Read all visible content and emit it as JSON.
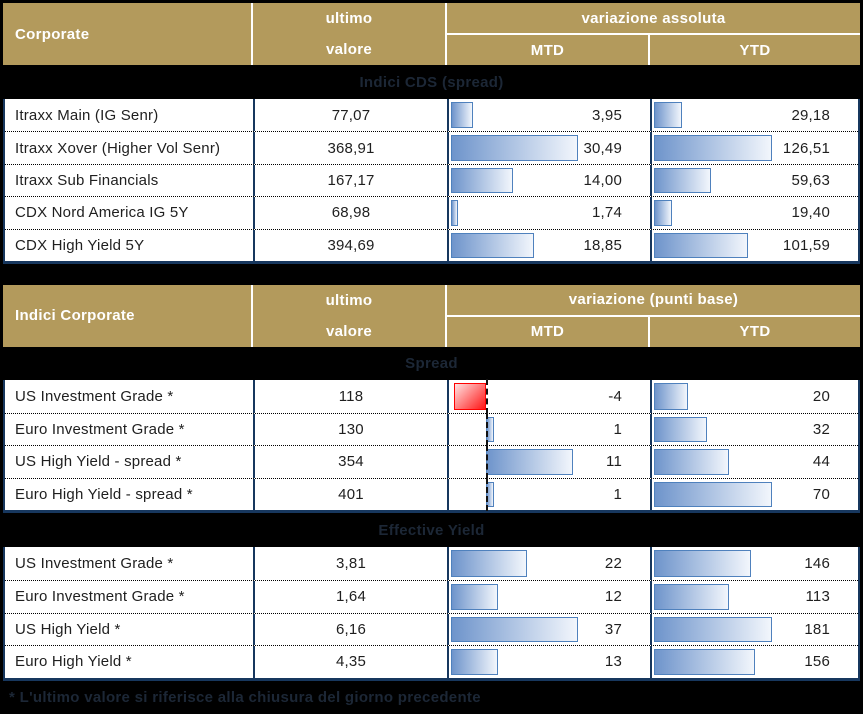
{
  "colors": {
    "header_gold": "#B39A5C",
    "table_border_navy": "#17375E",
    "bar_border_blue": "#4F81BD",
    "bar_fill_blue_start": "#6E94CB",
    "bar_fill_blue_end": "#F2F6FC",
    "bar_negative_red": "#FF0000",
    "band_background": "#000000",
    "band_text": "#1C2736",
    "header_text": "#FFFFFF"
  },
  "table1": {
    "header": {
      "title": "Corporate",
      "value_line1": "ultimo",
      "value_line2": "valore",
      "group": "variazione assoluta",
      "mtd": "MTD",
      "ytd": "YTD"
    },
    "band": "Indici CDS (spread)",
    "rows": [
      {
        "label": "Itraxx Main (IG Senr)",
        "value": "77,07",
        "mtd": "3,95",
        "mtd_bar": 10.8,
        "ytd": "29,18",
        "ytd_bar": 13.6
      },
      {
        "label": "Itraxx Xover (Higher Vol Senr)",
        "value": "368,91",
        "mtd": "30,49",
        "mtd_bar": 63.0,
        "ytd": "126,51",
        "ytd_bar": 57.3
      },
      {
        "label": "Itraxx Sub Financials",
        "value": "167,17",
        "mtd": "14,00",
        "mtd_bar": 31.0,
        "ytd": "59,63",
        "ytd_bar": 27.7
      },
      {
        "label": "CDX Nord America IG 5Y",
        "value": "68,98",
        "mtd": "1,74",
        "mtd_bar": 3.5,
        "ytd": "19,40",
        "ytd_bar": 8.9
      },
      {
        "label": "CDX High Yield 5Y",
        "value": "394,69",
        "mtd": "18,85",
        "mtd_bar": 41.4,
        "ytd": "101,59",
        "ytd_bar": 45.5
      }
    ]
  },
  "table2": {
    "header": {
      "title": "Indici Corporate",
      "value_line1": "ultimo",
      "value_line2": "valore",
      "group": "variazione (punti base)",
      "mtd": "MTD",
      "ytd": "YTD"
    },
    "section_spread": {
      "band": "Spread",
      "rows": [
        {
          "label": "US Investment Grade *",
          "value": "118",
          "mtd": "-4",
          "mtd_bar": 15.8,
          "ytd": "20",
          "ytd_bar": 16.5
        },
        {
          "label": "Euro Investment Grade *",
          "value": "130",
          "mtd": "1",
          "mtd_bar": 4.0,
          "ytd": "32",
          "ytd_bar": 25.8
        },
        {
          "label": "US High Yield  - spread *",
          "value": "354",
          "mtd": "11",
          "mtd_bar": 43.3,
          "ytd": "44",
          "ytd_bar": 36.2
        },
        {
          "label": "Euro High Yield  - spread *",
          "value": "401",
          "mtd": "1",
          "mtd_bar": 4.0,
          "ytd": "70",
          "ytd_bar": 57.3
        }
      ]
    },
    "section_yield": {
      "band": "Effective Yield",
      "rows": [
        {
          "label": "US Investment Grade *",
          "value": "3,81",
          "mtd": "22",
          "mtd_bar": 37.9,
          "ytd": "146",
          "ytd_bar": 47.0
        },
        {
          "label": "Euro Investment Grade *",
          "value": "1,64",
          "mtd": "12",
          "mtd_bar": 23.2,
          "ytd": "113",
          "ytd_bar": 36.2
        },
        {
          "label": "US High Yield *",
          "value": "6,16",
          "mtd": "37",
          "mtd_bar": 63.0,
          "ytd": "181",
          "ytd_bar": 57.3
        },
        {
          "label": "Euro High Yield *",
          "value": "4,35",
          "mtd": "13",
          "mtd_bar": 23.6,
          "ytd": "156",
          "ytd_bar": 48.8
        }
      ]
    }
  },
  "footnote": "* L'ultimo valore si riferisce alla chiusura del giorno precedente",
  "chart_data": [
    {
      "type": "table",
      "title": "Corporate — Indici CDS (spread)",
      "columns": [
        "ultimo valore",
        "variazione assoluta MTD",
        "variazione assoluta YTD"
      ],
      "categories": [
        "Itraxx Main (IG Senr)",
        "Itraxx Xover (Higher Vol Senr)",
        "Itraxx Sub Financials",
        "CDX Nord America IG 5Y",
        "CDX High Yield 5Y"
      ],
      "series": [
        {
          "name": "ultimo valore",
          "values": [
            77.07,
            368.91,
            167.17,
            68.98,
            394.69
          ]
        },
        {
          "name": "MTD",
          "values": [
            3.95,
            30.49,
            14.0,
            1.74,
            18.85
          ]
        },
        {
          "name": "YTD",
          "values": [
            29.18,
            126.51,
            59.63,
            19.4,
            101.59
          ]
        }
      ],
      "layout": "MTD and YTD cells contain left-anchored blue gradient data bars proportional to value"
    },
    {
      "type": "table",
      "title": "Indici Corporate — Spread (variazione punti base)",
      "categories": [
        "US Investment Grade *",
        "Euro Investment Grade *",
        "US High Yield  - spread *",
        "Euro High Yield  - spread *"
      ],
      "series": [
        {
          "name": "ultimo valore",
          "values": [
            118,
            130,
            354,
            401
          ]
        },
        {
          "name": "MTD",
          "values": [
            -4,
            1,
            11,
            1
          ]
        },
        {
          "name": "YTD",
          "values": [
            20,
            32,
            44,
            70
          ]
        }
      ],
      "layout": "MTD column has dashed zero axis; negative value drawn as red bar extending left"
    },
    {
      "type": "table",
      "title": "Indici Corporate — Effective Yield (variazione punti base)",
      "categories": [
        "US Investment Grade *",
        "Euro Investment Grade *",
        "US High Yield *",
        "Euro High Yield *"
      ],
      "series": [
        {
          "name": "ultimo valore",
          "values": [
            3.81,
            1.64,
            6.16,
            4.35
          ]
        },
        {
          "name": "MTD",
          "values": [
            22,
            12,
            37,
            13
          ]
        },
        {
          "name": "YTD",
          "values": [
            146,
            113,
            181,
            156
          ]
        }
      ],
      "layout": "blue gradient data bars, left-anchored"
    }
  ]
}
